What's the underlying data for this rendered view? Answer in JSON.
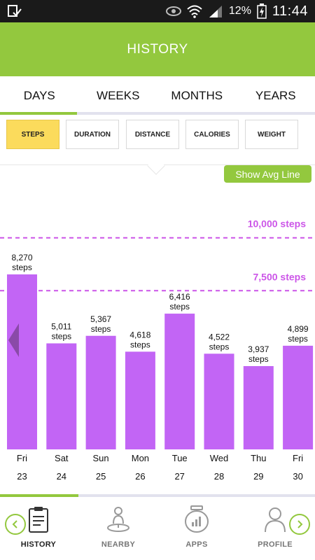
{
  "status_bar": {
    "battery_percent": "12%",
    "time": "11:44"
  },
  "header": {
    "title": "HISTORY"
  },
  "period_tabs": [
    {
      "label": "DAYS",
      "active": true
    },
    {
      "label": "WEEKS",
      "active": false
    },
    {
      "label": "MONTHS",
      "active": false
    },
    {
      "label": "YEARS",
      "active": false
    }
  ],
  "metrics": [
    {
      "label": "STEPS",
      "active": true
    },
    {
      "label": "DURATION",
      "active": false
    },
    {
      "label": "DISTANCE",
      "active": false
    },
    {
      "label": "CALORIES",
      "active": false
    },
    {
      "label": "WEIGHT",
      "active": false
    }
  ],
  "avg_toggle_label": "Show Avg Line",
  "colors": {
    "accent": "#93c83e",
    "bar": "#c265f5",
    "goal_line": "#cc55e8",
    "active_metric": "#fbdb5c",
    "nav_arrow": "#93c83e"
  },
  "chart_data": {
    "type": "bar",
    "unit": "steps",
    "categories": [
      "Fri",
      "Sat",
      "Sun",
      "Mon",
      "Tue",
      "Wed",
      "Thu",
      "Fri"
    ],
    "dates": [
      "23",
      "24",
      "25",
      "26",
      "27",
      "28",
      "29",
      "30"
    ],
    "values": [
      8270,
      5011,
      5367,
      4618,
      6416,
      4522,
      3937,
      4899
    ],
    "value_labels": [
      "8,270",
      "5,011",
      "5,367",
      "4,618",
      "6,416",
      "4,522",
      "3,937",
      "4,899"
    ],
    "reference_lines": [
      {
        "value": 10000,
        "label": "10,000 steps"
      },
      {
        "value": 7500,
        "label": "7,500 steps"
      }
    ],
    "ylim": [
      0,
      12000
    ],
    "grid": false
  },
  "bottom_nav": [
    {
      "label": "HISTORY",
      "icon": "clipboard-icon",
      "active": true
    },
    {
      "label": "NEARBY",
      "icon": "person-pin-icon",
      "active": false
    },
    {
      "label": "APPS",
      "icon": "apps-jar-icon",
      "active": false
    },
    {
      "label": "PROFILE",
      "icon": "person-icon",
      "active": false
    }
  ],
  "nav_arrows": {
    "left_icon": "chevron-left-icon",
    "right_icon": "chevron-right-icon"
  }
}
